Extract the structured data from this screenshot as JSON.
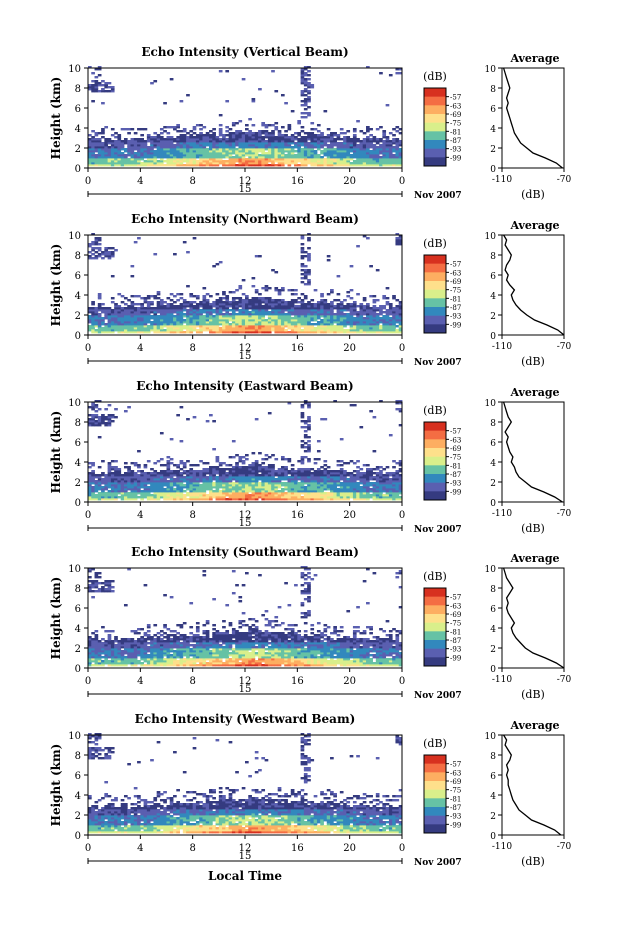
{
  "chart_data": {
    "type": "heatmap",
    "x_label": "Local Time",
    "x_ticks": [
      "0",
      "4",
      "8",
      "12",
      "16",
      "20",
      "0"
    ],
    "y_label": "Height (km)",
    "y_ticks": [
      "0",
      "2",
      "4",
      "6",
      "8",
      "10"
    ],
    "xlim": [
      0,
      24
    ],
    "ylim": [
      0,
      10
    ],
    "date_marker": "15",
    "date_text": "Nov 2007",
    "colorbar": {
      "unit": "(dB)",
      "levels": [
        -57,
        -63,
        -69,
        -75,
        -81,
        -87,
        -93,
        -99
      ],
      "colors": [
        "#d7301f",
        "#f46d43",
        "#fdae61",
        "#fee08b",
        "#d9ef8b",
        "#66c2a5",
        "#3288bd",
        "#5a5fb0",
        "#353b80"
      ]
    },
    "avg_panel": {
      "title": "Average",
      "xlabel": "(dB)",
      "x_ticks": [
        "-110",
        "-70"
      ],
      "xlim": [
        -110,
        -70
      ],
      "y_ticks": [
        "0",
        "2",
        "4",
        "6",
        "8",
        "10"
      ],
      "ylim": [
        0,
        10
      ]
    },
    "panels": [
      {
        "title": "Echo Intensity (Vertical Beam)",
        "average_profile": {
          "height": [
            0,
            0.5,
            1,
            1.5,
            2,
            2.5,
            3,
            3.5,
            4,
            4.5,
            5,
            5.5,
            6,
            6.5,
            7,
            7.5,
            8,
            8.5,
            9,
            9.5,
            10
          ],
          "db": [
            -71,
            -75,
            -82,
            -90,
            -94,
            -98,
            -100,
            -102,
            -103,
            -104,
            -105,
            -106,
            -107,
            -106,
            -107,
            -106,
            -105,
            -106,
            -107,
            -108,
            -109
          ]
        }
      },
      {
        "title": "Echo Intensity (Northward Beam)",
        "average_profile": {
          "height": [
            0,
            0.5,
            1,
            1.5,
            2,
            2.5,
            3,
            3.5,
            4,
            4.5,
            5,
            5.5,
            6,
            6.5,
            7,
            7.5,
            8,
            8.5,
            9,
            9.5,
            10
          ],
          "db": [
            -70,
            -74,
            -81,
            -89,
            -94,
            -98,
            -101,
            -103,
            -104,
            -102,
            -105,
            -107,
            -106,
            -108,
            -107,
            -105,
            -104,
            -106,
            -108,
            -107,
            -109
          ]
        }
      },
      {
        "title": "Echo Intensity (Eastward Beam)",
        "average_profile": {
          "height": [
            0,
            0.5,
            1,
            1.5,
            2,
            2.5,
            3,
            3.5,
            4,
            4.5,
            5,
            5.5,
            6,
            6.5,
            7,
            7.5,
            8,
            8.5,
            9,
            9.5,
            10
          ],
          "db": [
            -71,
            -76,
            -83,
            -91,
            -95,
            -99,
            -101,
            -102,
            -104,
            -103,
            -105,
            -106,
            -107,
            -106,
            -108,
            -106,
            -104,
            -106,
            -107,
            -108,
            -109
          ]
        }
      },
      {
        "title": "Echo Intensity (Southward Beam)",
        "average_profile": {
          "height": [
            0,
            0.5,
            1,
            1.5,
            2,
            2.5,
            3,
            3.5,
            4,
            4.5,
            5,
            5.5,
            6,
            6.5,
            7,
            7.5,
            8,
            8.5,
            9,
            9.5,
            10
          ],
          "db": [
            -70,
            -75,
            -82,
            -90,
            -95,
            -98,
            -101,
            -103,
            -104,
            -102,
            -104,
            -106,
            -107,
            -106,
            -107,
            -105,
            -103,
            -105,
            -107,
            -108,
            -109
          ]
        }
      },
      {
        "title": "Echo Intensity (Westward Beam)",
        "average_profile": {
          "height": [
            0,
            0.5,
            1,
            1.5,
            2,
            2.5,
            3,
            3.5,
            4,
            4.5,
            5,
            5.5,
            6,
            6.5,
            7,
            7.5,
            8,
            8.5,
            9,
            9.5,
            10
          ],
          "db": [
            -72,
            -76,
            -83,
            -91,
            -95,
            -99,
            -101,
            -103,
            -104,
            -105,
            -106,
            -106,
            -107,
            -106,
            -107,
            -105,
            -104,
            -106,
            -108,
            -107,
            -109
          ]
        }
      }
    ]
  }
}
